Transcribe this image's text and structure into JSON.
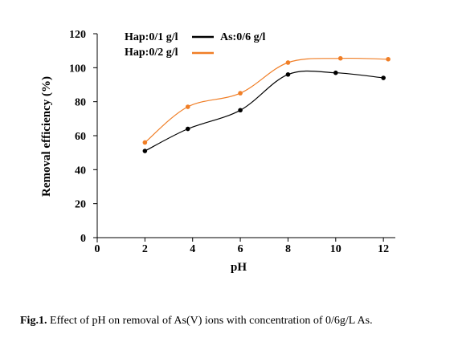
{
  "chart_data": {
    "type": "line",
    "title": "",
    "xlabel": "pH",
    "ylabel": "Removal efficiency (%)",
    "xlim": [
      0,
      12.5
    ],
    "ylim": [
      0,
      120
    ],
    "xticks": [
      0,
      2,
      4,
      6,
      8,
      10,
      12
    ],
    "yticks": [
      0,
      20,
      40,
      60,
      80,
      100,
      120
    ],
    "grid": false,
    "legend_position": "top",
    "annotation": "As:0/6 g/l",
    "series": [
      {
        "name": "Hap:0/1 g/l",
        "color": "#000000",
        "x": [
          2,
          3.8,
          6,
          8,
          10,
          12
        ],
        "y": [
          51,
          64,
          75,
          96,
          97,
          94
        ]
      },
      {
        "name": "Hap:0/2 g/l",
        "color": "#f07e26",
        "x": [
          2,
          3.8,
          6,
          8,
          10.2,
          12.2
        ],
        "y": [
          56,
          77,
          85,
          103,
          105.5,
          105
        ]
      }
    ]
  },
  "caption": {
    "prefix": "Fig.1.",
    "text": " Effect of pH on removal of As(V) ions with concentration of 0/6g/L As."
  }
}
